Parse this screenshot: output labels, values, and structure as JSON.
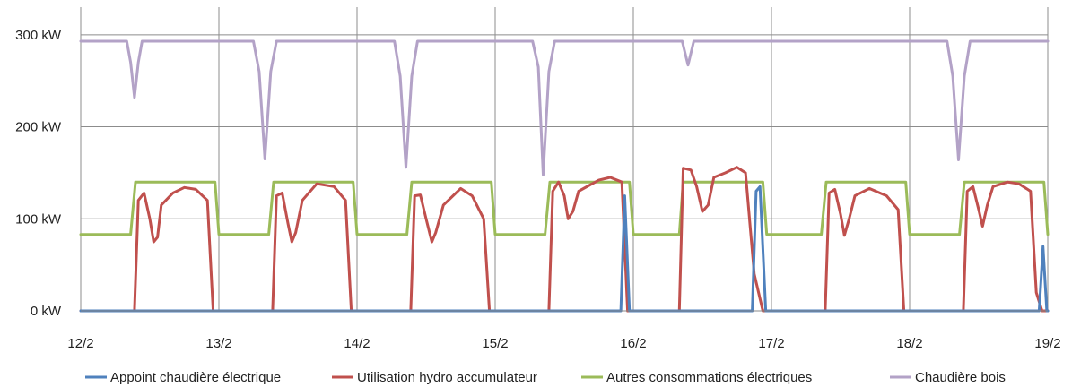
{
  "chart_data": {
    "type": "line",
    "title": "",
    "xlabel": "",
    "ylabel": "",
    "x_unit": "days",
    "xlim": [
      "12/2",
      "19/2"
    ],
    "x_ticks": [
      "12/2",
      "13/2",
      "14/2",
      "15/2",
      "16/2",
      "17/2",
      "18/2",
      "19/2"
    ],
    "y_ticks": [
      "0 kW",
      "100 kW",
      "200 kW",
      "300 kW"
    ],
    "y_tick_values": [
      0,
      100,
      200,
      300
    ],
    "ylim": [
      0,
      330
    ],
    "grid": "vertical at each day + horizontal at each y tick",
    "legend_position": "bottom",
    "series": [
      {
        "name": "Appoint chaudière électrique",
        "color": "#4f81bd",
        "points": [
          [
            "12/2 00:00",
            0
          ],
          [
            "15/2 21:50",
            0
          ],
          [
            "15/2 22:30",
            125
          ],
          [
            "15/2 23:20",
            0
          ],
          [
            "16/2 20:40",
            0
          ],
          [
            "16/2 21:20",
            130
          ],
          [
            "16/2 22:00",
            135
          ],
          [
            "16/2 23:00",
            0
          ],
          [
            "18/2 22:30",
            0
          ],
          [
            "18/2 23:10",
            70
          ],
          [
            "18/2 23:50",
            0
          ],
          [
            "19/2 00:00",
            0
          ]
        ]
      },
      {
        "name": "Utilisation hydro accumulateur",
        "color": "#c0504d",
        "points": [
          [
            "12/2 00:00",
            0
          ],
          [
            "12/2 09:20",
            0
          ],
          [
            "12/2 10:00",
            120
          ],
          [
            "12/2 11:00",
            128
          ],
          [
            "12/2 12:00",
            100
          ],
          [
            "12/2 12:40",
            75
          ],
          [
            "12/2 13:20",
            80
          ],
          [
            "12/2 14:00",
            115
          ],
          [
            "12/2 16:00",
            128
          ],
          [
            "12/2 18:00",
            134
          ],
          [
            "12/2 20:00",
            132
          ],
          [
            "12/2 22:00",
            120
          ],
          [
            "12/2 23:00",
            0
          ],
          [
            "13/2 00:00",
            0
          ],
          [
            "13/2 09:20",
            0
          ],
          [
            "13/2 10:00",
            125
          ],
          [
            "13/2 11:00",
            128
          ],
          [
            "13/2 12:00",
            95
          ],
          [
            "13/2 12:40",
            75
          ],
          [
            "13/2 13:20",
            85
          ],
          [
            "13/2 14:30",
            120
          ],
          [
            "13/2 17:00",
            138
          ],
          [
            "13/2 20:00",
            135
          ],
          [
            "13/2 22:00",
            120
          ],
          [
            "13/2 23:00",
            0
          ],
          [
            "14/2 00:00",
            0
          ],
          [
            "14/2 09:20",
            0
          ],
          [
            "14/2 10:00",
            125
          ],
          [
            "14/2 11:00",
            126
          ],
          [
            "14/2 12:00",
            100
          ],
          [
            "14/2 13:00",
            75
          ],
          [
            "14/2 13:40",
            85
          ],
          [
            "14/2 15:00",
            115
          ],
          [
            "14/2 18:00",
            133
          ],
          [
            "14/2 20:00",
            125
          ],
          [
            "14/2 22:00",
            100
          ],
          [
            "14/2 23:00",
            0
          ],
          [
            "15/2 00:00",
            0
          ],
          [
            "15/2 09:20",
            0
          ],
          [
            "15/2 10:00",
            130
          ],
          [
            "15/2 11:00",
            140
          ],
          [
            "15/2 12:00",
            125
          ],
          [
            "15/2 12:40",
            100
          ],
          [
            "15/2 13:30",
            108
          ],
          [
            "15/2 14:30",
            130
          ],
          [
            "15/2 18:00",
            142
          ],
          [
            "15/2 20:00",
            145
          ],
          [
            "15/2 22:00",
            140
          ],
          [
            "15/2 23:00",
            0
          ],
          [
            "16/2 00:00",
            0
          ],
          [
            "16/2 08:00",
            0
          ],
          [
            "16/2 08:40",
            155
          ],
          [
            "16/2 10:00",
            153
          ],
          [
            "16/2 11:00",
            135
          ],
          [
            "16/2 12:00",
            108
          ],
          [
            "16/2 13:00",
            115
          ],
          [
            "16/2 14:00",
            145
          ],
          [
            "16/2 16:00",
            150
          ],
          [
            "16/2 18:00",
            156
          ],
          [
            "16/2 19:30",
            150
          ],
          [
            "16/2 21:00",
            40
          ],
          [
            "16/2 22:30",
            0
          ],
          [
            "17/2 00:00",
            0
          ],
          [
            "17/2 09:20",
            0
          ],
          [
            "17/2 10:00",
            128
          ],
          [
            "17/2 11:00",
            132
          ],
          [
            "17/2 12:00",
            105
          ],
          [
            "17/2 12:40",
            82
          ],
          [
            "17/2 13:30",
            100
          ],
          [
            "17/2 14:30",
            125
          ],
          [
            "17/2 17:00",
            133
          ],
          [
            "17/2 20:00",
            125
          ],
          [
            "17/2 22:00",
            110
          ],
          [
            "17/2 23:00",
            0
          ],
          [
            "18/2 00:00",
            0
          ],
          [
            "18/2 09:20",
            0
          ],
          [
            "18/2 10:00",
            130
          ],
          [
            "18/2 11:00",
            135
          ],
          [
            "18/2 12:00",
            110
          ],
          [
            "18/2 12:40",
            92
          ],
          [
            "18/2 13:30",
            115
          ],
          [
            "18/2 14:30",
            135
          ],
          [
            "18/2 17:00",
            140
          ],
          [
            "18/2 19:00",
            138
          ],
          [
            "18/2 21:00",
            130
          ],
          [
            "18/2 22:00",
            20
          ],
          [
            "18/2 23:00",
            0
          ],
          [
            "19/2 00:00",
            0
          ]
        ]
      },
      {
        "name": "Autres consommations électriques",
        "color": "#9bbb59",
        "points": [
          [
            "12/2 00:00",
            83
          ],
          [
            "12/2 08:40",
            83
          ],
          [
            "12/2 09:30",
            140
          ],
          [
            "12/2 23:20",
            140
          ],
          [
            "12/2 24:00",
            83
          ],
          [
            "13/2 08:40",
            83
          ],
          [
            "13/2 09:30",
            140
          ],
          [
            "13/2 23:20",
            140
          ],
          [
            "13/2 24:00",
            83
          ],
          [
            "14/2 08:40",
            83
          ],
          [
            "14/2 09:30",
            140
          ],
          [
            "14/2 23:20",
            140
          ],
          [
            "14/2 24:00",
            83
          ],
          [
            "15/2 08:40",
            83
          ],
          [
            "15/2 09:30",
            140
          ],
          [
            "15/2 23:20",
            140
          ],
          [
            "15/2 24:00",
            83
          ],
          [
            "16/2 08:00",
            83
          ],
          [
            "16/2 08:40",
            140
          ],
          [
            "16/2 22:30",
            140
          ],
          [
            "16/2 23:10",
            83
          ],
          [
            "17/2 08:40",
            83
          ],
          [
            "17/2 09:30",
            140
          ],
          [
            "17/2 23:20",
            140
          ],
          [
            "17/2 24:00",
            83
          ],
          [
            "18/2 08:40",
            83
          ],
          [
            "18/2 09:30",
            140
          ],
          [
            "18/2 23:20",
            140
          ],
          [
            "18/2 24:00",
            83
          ],
          [
            "19/2 00:00",
            83
          ]
        ]
      },
      {
        "name": "Chaudière bois",
        "color": "#b3a2c7",
        "points": [
          [
            "12/2 00:00",
            293
          ],
          [
            "12/2 08:00",
            293
          ],
          [
            "12/2 08:40",
            270
          ],
          [
            "12/2 09:20",
            232
          ],
          [
            "12/2 10:00",
            270
          ],
          [
            "12/2 10:40",
            293
          ],
          [
            "13/2 06:00",
            293
          ],
          [
            "13/2 07:00",
            260
          ],
          [
            "13/2 08:00",
            165
          ],
          [
            "13/2 09:00",
            260
          ],
          [
            "13/2 10:00",
            293
          ],
          [
            "14/2 06:30",
            293
          ],
          [
            "14/2 07:30",
            255
          ],
          [
            "14/2 08:30",
            156
          ],
          [
            "14/2 09:30",
            255
          ],
          [
            "14/2 10:30",
            293
          ],
          [
            "15/2 06:30",
            293
          ],
          [
            "15/2 07:30",
            265
          ],
          [
            "15/2 08:20",
            148
          ],
          [
            "15/2 09:20",
            260
          ],
          [
            "15/2 10:20",
            293
          ],
          [
            "16/2 08:30",
            293
          ],
          [
            "16/2 09:30",
            267
          ],
          [
            "16/2 10:30",
            293
          ],
          [
            "18/2 06:30",
            293
          ],
          [
            "18/2 07:30",
            255
          ],
          [
            "18/2 08:30",
            164
          ],
          [
            "18/2 09:30",
            255
          ],
          [
            "18/2 10:30",
            293
          ],
          [
            "19/2 00:00",
            293
          ]
        ]
      }
    ]
  }
}
